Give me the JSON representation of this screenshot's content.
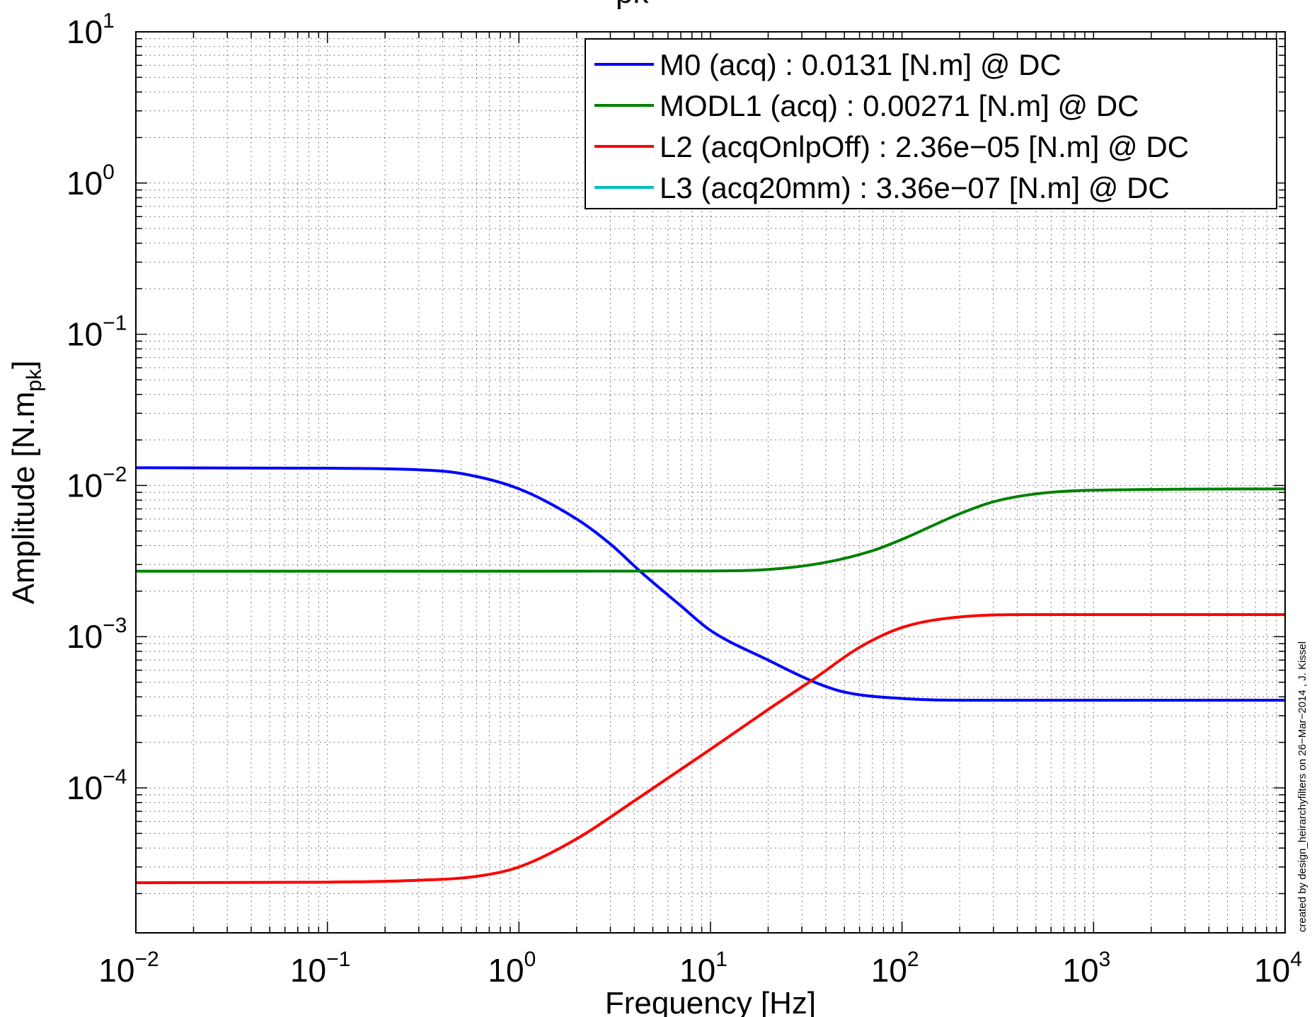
{
  "chart_data": {
    "type": "line",
    "title_fragment": "pk",
    "xlabel": "Frequency [Hz]",
    "ylabel": "Amplitude [N.m",
    "ylabel_sub": "pk",
    "ylabel_end": "]",
    "x_scale": "log",
    "y_scale": "log",
    "xlim": [
      0.01,
      10000
    ],
    "ylim": [
      1.1e-05,
      10
    ],
    "grid": true,
    "legend_position": "top-right",
    "x_ticks": [
      {
        "value": 0.01,
        "base": "10",
        "exp": "−2"
      },
      {
        "value": 0.1,
        "base": "10",
        "exp": "−1"
      },
      {
        "value": 1,
        "base": "10",
        "exp": "0"
      },
      {
        "value": 10,
        "base": "10",
        "exp": "1"
      },
      {
        "value": 100,
        "base": "10",
        "exp": "2"
      },
      {
        "value": 1000,
        "base": "10",
        "exp": "3"
      },
      {
        "value": 10000,
        "base": "10",
        "exp": "4"
      }
    ],
    "y_ticks": [
      {
        "value": 0.0001,
        "base": "10",
        "exp": "−4"
      },
      {
        "value": 0.001,
        "base": "10",
        "exp": "−3"
      },
      {
        "value": 0.01,
        "base": "10",
        "exp": "−2"
      },
      {
        "value": 0.1,
        "base": "10",
        "exp": "−1"
      },
      {
        "value": 1,
        "base": "10",
        "exp": "0"
      },
      {
        "value": 10,
        "base": "10",
        "exp": "1"
      }
    ],
    "series": [
      {
        "name": "M0 (acq) : 0.0131 [N.m] @ DC",
        "color": "#0000ff",
        "x": [
          0.01,
          0.1,
          0.3,
          0.5,
          1,
          2,
          3,
          4.3,
          7,
          10,
          20,
          35,
          50,
          100,
          200,
          1000,
          10000
        ],
        "y": [
          0.0131,
          0.013,
          0.0127,
          0.012,
          0.0095,
          0.006,
          0.0041,
          0.0027,
          0.0016,
          0.0011,
          0.0007,
          0.0005,
          0.00043,
          0.00039,
          0.00038,
          0.00038,
          0.00038
        ]
      },
      {
        "name": "MODL1 (acq) : 0.00271 [N.m] @ DC",
        "color": "#008000",
        "x": [
          0.01,
          1,
          10,
          20,
          40,
          70,
          100,
          200,
          300,
          500,
          1000,
          10000
        ],
        "y": [
          0.00271,
          0.00271,
          0.00272,
          0.00278,
          0.0031,
          0.0037,
          0.0044,
          0.0065,
          0.0078,
          0.0088,
          0.0093,
          0.0095
        ]
      },
      {
        "name": "L2 (acqOnlpOff) : 2.36e−05 [N.m] @ DC",
        "color": "#ff0000",
        "x": [
          0.01,
          0.1,
          0.3,
          0.6,
          1,
          2,
          4,
          10,
          20,
          35,
          60,
          100,
          200,
          500,
          1000,
          10000
        ],
        "y": [
          2.36e-05,
          2.38e-05,
          2.45e-05,
          2.6e-05,
          3e-05,
          4.6e-05,
          8.2e-05,
          0.00018,
          0.00033,
          0.00053,
          0.00085,
          0.00115,
          0.00135,
          0.0014,
          0.0014,
          0.0014
        ]
      },
      {
        "name": "L3 (acq20mm) : 3.36e−07 [N.m] @ DC",
        "color": "#00bfbf",
        "x": [],
        "y": []
      }
    ],
    "annotation": "created by design_heirarchyfilters on 26−Mar−2014 , J. Kissel"
  }
}
